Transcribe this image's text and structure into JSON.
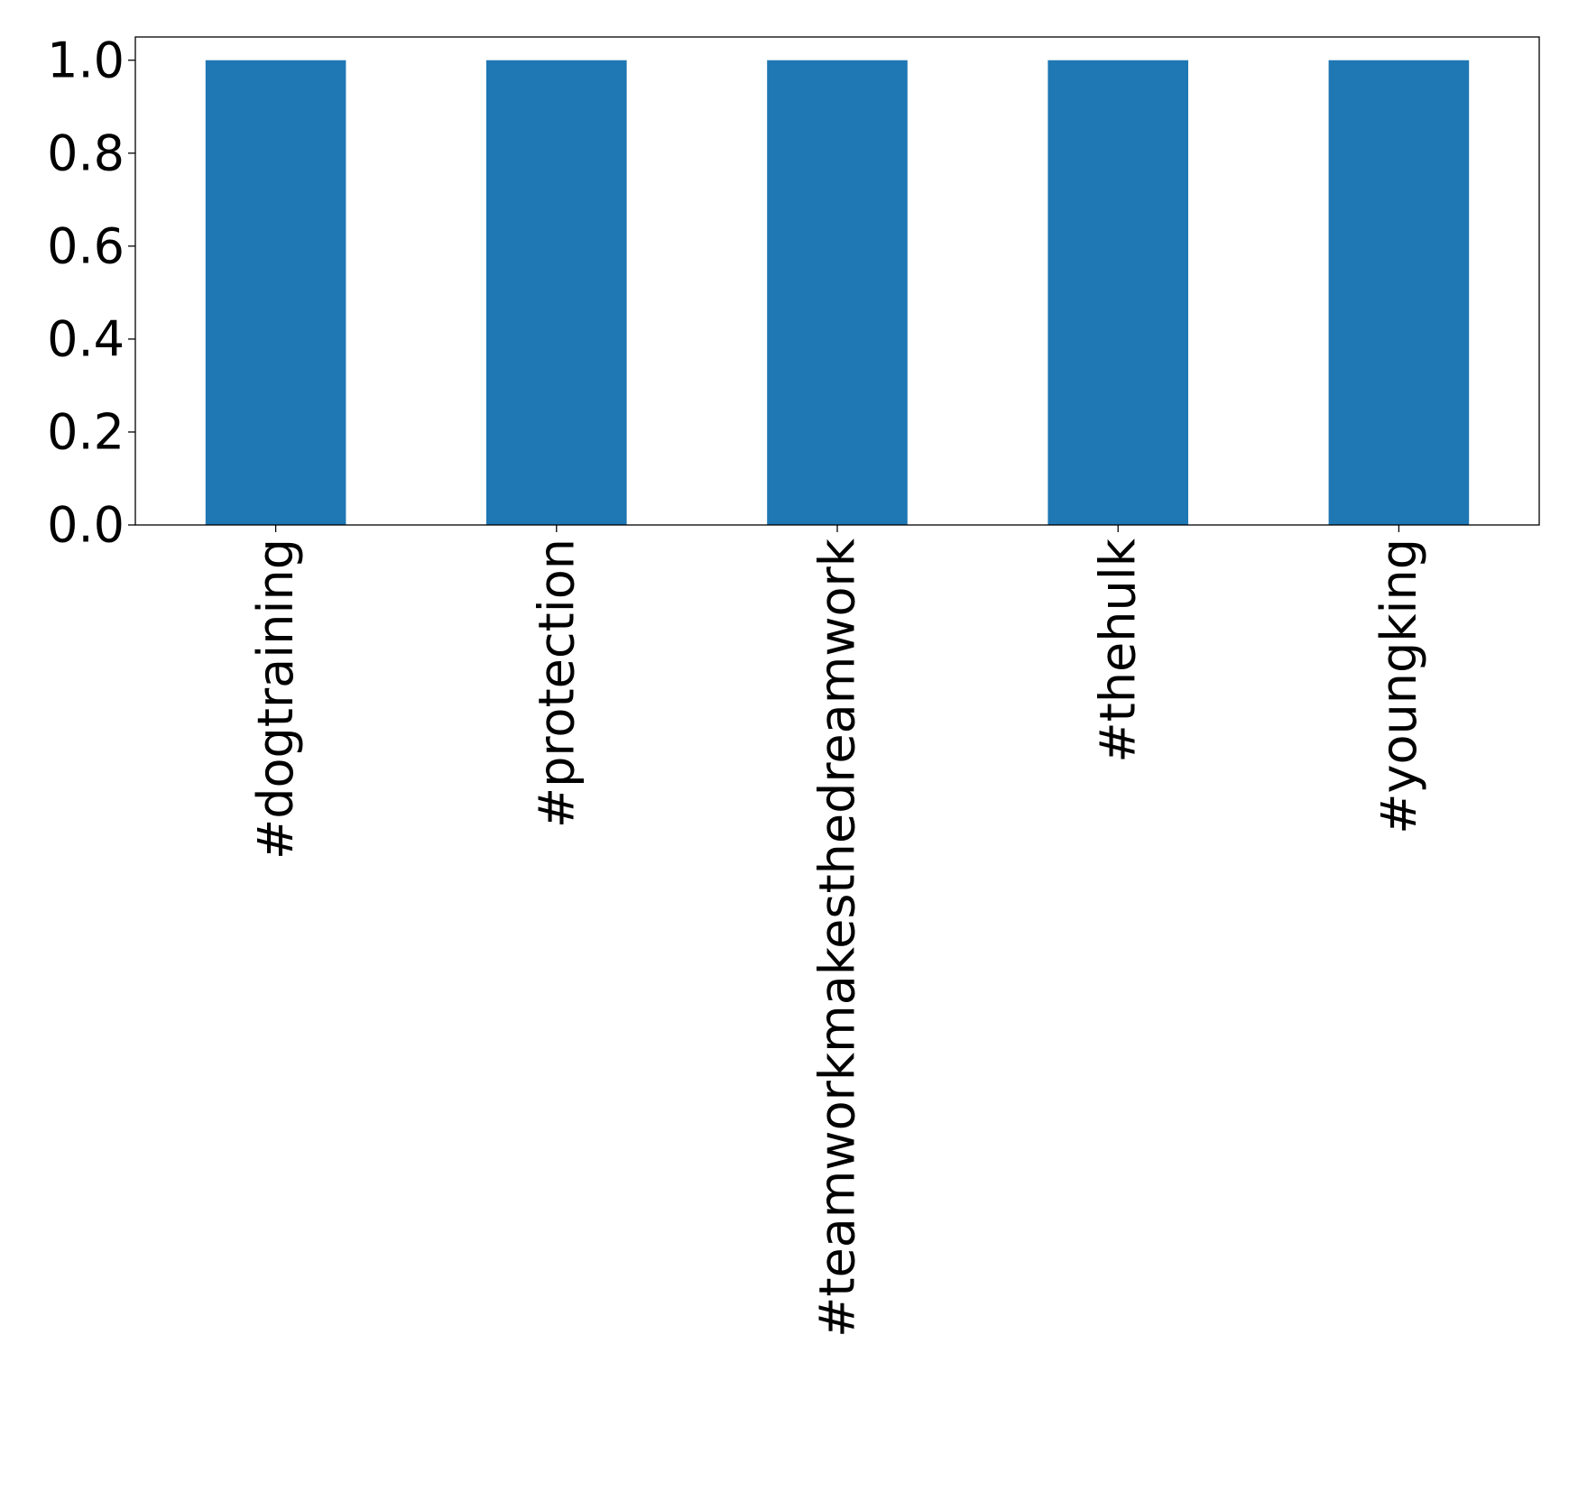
{
  "chart_data": {
    "type": "bar",
    "title": "",
    "xlabel": "",
    "ylabel": "",
    "categories": [
      "#dogtraining",
      "#protection",
      "#teamworkmakesthedreamwork",
      "#thehulk",
      "#youngking"
    ],
    "values": [
      1.0,
      1.0,
      1.0,
      1.0,
      1.0
    ],
    "ylim": [
      0.0,
      1.05
    ],
    "yticks": [
      0.0,
      0.2,
      0.4,
      0.6,
      0.8,
      1.0
    ],
    "ytick_labels": [
      "0.0",
      "0.2",
      "0.4",
      "0.6",
      "0.8",
      "1.0"
    ],
    "bar_color": "#1f77b4",
    "grid": false,
    "legend": "none"
  }
}
